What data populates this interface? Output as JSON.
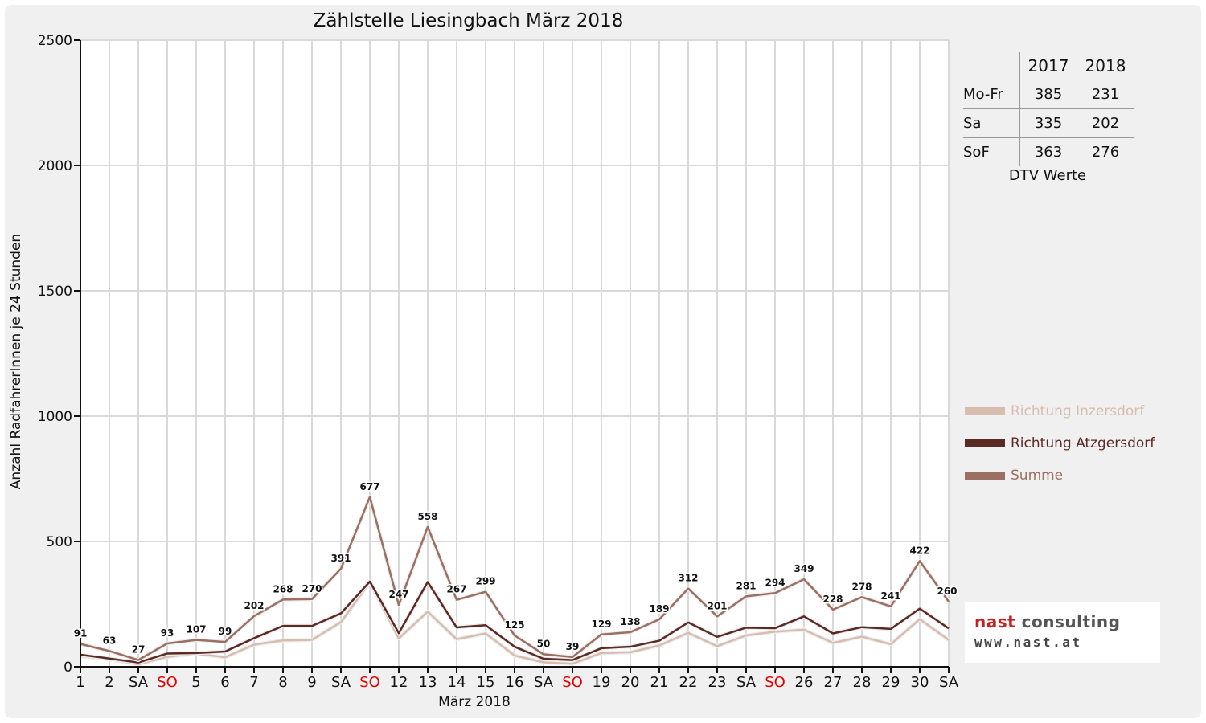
{
  "chart_data": {
    "type": "line",
    "title": "Zählstelle Liesingbach März 2018",
    "xlabel": "März 2018",
    "ylabel": "Anzahl RadfahrerInnen je 24 Stunden",
    "ylim": [
      0,
      2500
    ],
    "yticks": [
      "0",
      "500",
      "1000",
      "1500",
      "2000",
      "2500"
    ],
    "grid": true,
    "legend_position": "right",
    "categories": [
      "1",
      "2",
      "SA",
      "SO",
      "5",
      "6",
      "7",
      "8",
      "9",
      "SA",
      "SO",
      "12",
      "13",
      "14",
      "15",
      "16",
      "SA",
      "SO",
      "19",
      "20",
      "21",
      "22",
      "23",
      "SA",
      "SO",
      "26",
      "27",
      "28",
      "29",
      "30",
      "SA"
    ],
    "category_colors": [
      "#111111",
      "#111111",
      "#111111",
      "#e00000",
      "#111111",
      "#111111",
      "#111111",
      "#111111",
      "#111111",
      "#111111",
      "#e00000",
      "#111111",
      "#111111",
      "#111111",
      "#111111",
      "#111111",
      "#111111",
      "#e00000",
      "#111111",
      "#111111",
      "#111111",
      "#111111",
      "#111111",
      "#111111",
      "#e00000",
      "#111111",
      "#111111",
      "#111111",
      "#111111",
      "#111111",
      "#111111"
    ],
    "series": [
      {
        "name": "Richtung Inzersdorf",
        "color": "#d7bdb0",
        "values": [
          43,
          30,
          10,
          40,
          52,
          38,
          88,
          105,
          107,
          178,
          337,
          113,
          220,
          110,
          133,
          45,
          18,
          12,
          55,
          58,
          85,
          135,
          82,
          125,
          140,
          148,
          95,
          120,
          90,
          190,
          107
        ]
      },
      {
        "name": "Richtung Atzgersdorf",
        "color": "#5a2a25",
        "values": [
          48,
          33,
          17,
          53,
          55,
          61,
          114,
          163,
          163,
          213,
          340,
          134,
          338,
          157,
          166,
          80,
          32,
          27,
          74,
          80,
          104,
          177,
          119,
          156,
          154,
          201,
          133,
          158,
          151,
          232,
          153
        ]
      },
      {
        "name": "Summe",
        "color": "#9b7063",
        "values": [
          91,
          63,
          27,
          93,
          107,
          99,
          202,
          268,
          270,
          391,
          677,
          247,
          558,
          267,
          299,
          125,
          50,
          39,
          129,
          138,
          189,
          312,
          201,
          281,
          294,
          349,
          228,
          278,
          241,
          422,
          260
        ]
      }
    ],
    "data_labels": [
      "91",
      "63",
      "27",
      "93",
      "107",
      "99",
      "202",
      "268",
      "270",
      "391",
      "677",
      "247",
      "558",
      "267",
      "299",
      "125",
      "50",
      "39",
      "129",
      "138",
      "189",
      "312",
      "201",
      "281",
      "294",
      "349",
      "228",
      "278",
      "241",
      "422",
      "260"
    ]
  },
  "dtv_table": {
    "headers": [
      "2017",
      "2018"
    ],
    "rows": [
      {
        "label": "Mo-Fr",
        "v2017": "385",
        "v2018": "231"
      },
      {
        "label": "Sa",
        "v2017": "335",
        "v2018": "202"
      },
      {
        "label": "SoF",
        "v2017": "363",
        "v2018": "276"
      }
    ],
    "caption": "DTV Werte"
  },
  "logo": {
    "name_part1": "nast",
    "name_part2": " consulting",
    "url": "www.nast.at",
    "accent_color": "#c81e1e"
  }
}
